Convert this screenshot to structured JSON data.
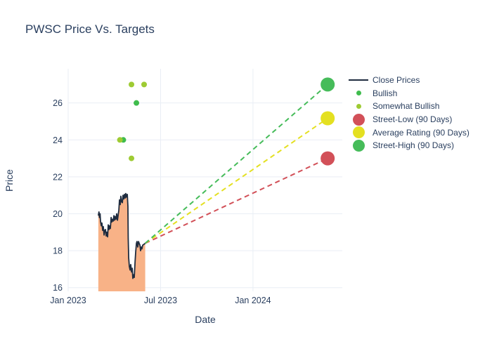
{
  "title": "PWSC Price Vs. Targets",
  "axes": {
    "xlabel": "Date",
    "ylabel": "Price"
  },
  "colors": {
    "text": "#2a3f5f",
    "grid": "#e9eef5",
    "close_line": "#1f2c3f",
    "close_fill": "#f8b287",
    "bullish": "#3fbc4d",
    "somewhat_bullish": "#9ecb33",
    "street_low": "#d25058",
    "average_rating": "#e4e021",
    "street_high": "#46bc5a"
  },
  "legend_items": [
    {
      "label": "Close Prices",
      "swatch": "line",
      "color": "#1f2c3f"
    },
    {
      "label": "Bullish",
      "swatch": "dot",
      "color": "#3fbc4d"
    },
    {
      "label": "Somewhat Bullish",
      "swatch": "dot",
      "color": "#9ecb33"
    },
    {
      "label": "Street-Low (90 Days)",
      "swatch": "circle",
      "color": "#d25058"
    },
    {
      "label": "Average Rating (90 Days)",
      "swatch": "circle",
      "color": "#e4e021"
    },
    {
      "label": "Street-High (90 Days)",
      "swatch": "circle",
      "color": "#46bc5a"
    }
  ],
  "chart_data": {
    "type": "line",
    "title": "PWSC Price Vs. Targets",
    "xlabel": "Date",
    "ylabel": "Price",
    "x_unit": "months since Jan 2023",
    "xlim_months": [
      0,
      17.8
    ],
    "ylim": [
      15.8,
      27.85
    ],
    "grid": true,
    "legend_position": "right",
    "x_ticks": [
      {
        "m": 0,
        "label": "Jan 2023"
      },
      {
        "m": 6,
        "label": "Jul 2023"
      },
      {
        "m": 12,
        "label": "Jan 2024"
      }
    ],
    "y_ticks": [
      16,
      18,
      20,
      22,
      24,
      26
    ],
    "series": [
      {
        "name": "Close Prices",
        "kind": "line-area",
        "color": "#1f2c3f",
        "fill": "#f8b287",
        "points": [
          [
            1.96,
            19.9
          ],
          [
            2.0,
            20.1
          ],
          [
            2.03,
            19.8
          ],
          [
            2.07,
            20.0
          ],
          [
            2.1,
            19.6
          ],
          [
            2.15,
            19.35
          ],
          [
            2.19,
            19.5
          ],
          [
            2.24,
            19.1
          ],
          [
            2.28,
            19.3
          ],
          [
            2.33,
            18.85
          ],
          [
            2.37,
            19.1
          ],
          [
            2.42,
            19.15
          ],
          [
            2.47,
            18.8
          ],
          [
            2.51,
            19.0
          ],
          [
            2.56,
            18.75
          ],
          [
            2.6,
            19.4
          ],
          [
            2.65,
            19.15
          ],
          [
            2.69,
            19.35
          ],
          [
            2.74,
            19.2
          ],
          [
            2.79,
            19.8
          ],
          [
            2.83,
            19.55
          ],
          [
            2.88,
            19.7
          ],
          [
            2.92,
            19.6
          ],
          [
            2.97,
            19.9
          ],
          [
            3.01,
            19.65
          ],
          [
            3.06,
            19.85
          ],
          [
            3.1,
            19.7
          ],
          [
            3.15,
            20.0
          ],
          [
            3.2,
            19.65
          ],
          [
            3.24,
            19.9
          ],
          [
            3.29,
            20.2
          ],
          [
            3.33,
            20.75
          ],
          [
            3.38,
            20.5
          ],
          [
            3.42,
            20.95
          ],
          [
            3.47,
            20.65
          ],
          [
            3.52,
            20.6
          ],
          [
            3.56,
            21.0
          ],
          [
            3.61,
            20.8
          ],
          [
            3.65,
            21.05
          ],
          [
            3.7,
            20.85
          ],
          [
            3.74,
            21.1
          ],
          [
            3.79,
            20.9
          ],
          [
            3.84,
            21.05
          ],
          [
            3.88,
            20.4
          ],
          [
            3.9,
            18.7
          ],
          [
            3.93,
            17.6
          ],
          [
            3.97,
            17.15
          ],
          [
            4.02,
            16.95
          ],
          [
            4.06,
            17.25
          ],
          [
            4.11,
            16.85
          ],
          [
            4.16,
            17.05
          ],
          [
            4.2,
            16.5
          ],
          [
            4.25,
            16.7
          ],
          [
            4.29,
            16.55
          ],
          [
            4.34,
            17.35
          ],
          [
            4.38,
            17.9
          ],
          [
            4.43,
            18.4
          ],
          [
            4.47,
            18.5
          ],
          [
            4.52,
            18.2
          ],
          [
            4.57,
            18.5
          ],
          [
            4.61,
            18.4
          ],
          [
            4.66,
            18.3
          ],
          [
            4.7,
            18.0
          ],
          [
            4.75,
            18.2
          ],
          [
            4.79,
            18.1
          ],
          [
            4.84,
            18.3
          ],
          [
            4.93,
            18.35
          ],
          [
            5.0,
            18.4
          ]
        ]
      },
      {
        "name": "Bullish",
        "kind": "scatter",
        "color": "#3fbc4d",
        "marker_radius": 4,
        "points": [
          [
            3.58,
            24
          ],
          [
            4.43,
            26
          ]
        ]
      },
      {
        "name": "Somewhat Bullish",
        "kind": "scatter",
        "color": "#9ecb33",
        "marker_radius": 4,
        "points": [
          [
            3.36,
            24
          ],
          [
            4.11,
            23
          ],
          [
            4.11,
            27
          ],
          [
            4.93,
            27
          ]
        ]
      },
      {
        "name": "Street-Low (90 Days)",
        "kind": "target-dashed",
        "color": "#d25058",
        "from": [
          5.0,
          18.4
        ],
        "to": [
          16.85,
          23
        ],
        "target_price": 23,
        "marker_radius": 10
      },
      {
        "name": "Average Rating (90 Days)",
        "kind": "target-dashed",
        "color": "#e4e021",
        "from": [
          5.0,
          18.4
        ],
        "to": [
          16.85,
          25.17
        ],
        "target_price": 25.17,
        "marker_radius": 10
      },
      {
        "name": "Street-High (90 Days)",
        "kind": "target-dashed",
        "color": "#46bc5a",
        "from": [
          5.0,
          18.4
        ],
        "to": [
          16.85,
          27
        ],
        "target_price": 27,
        "marker_radius": 10
      }
    ]
  }
}
